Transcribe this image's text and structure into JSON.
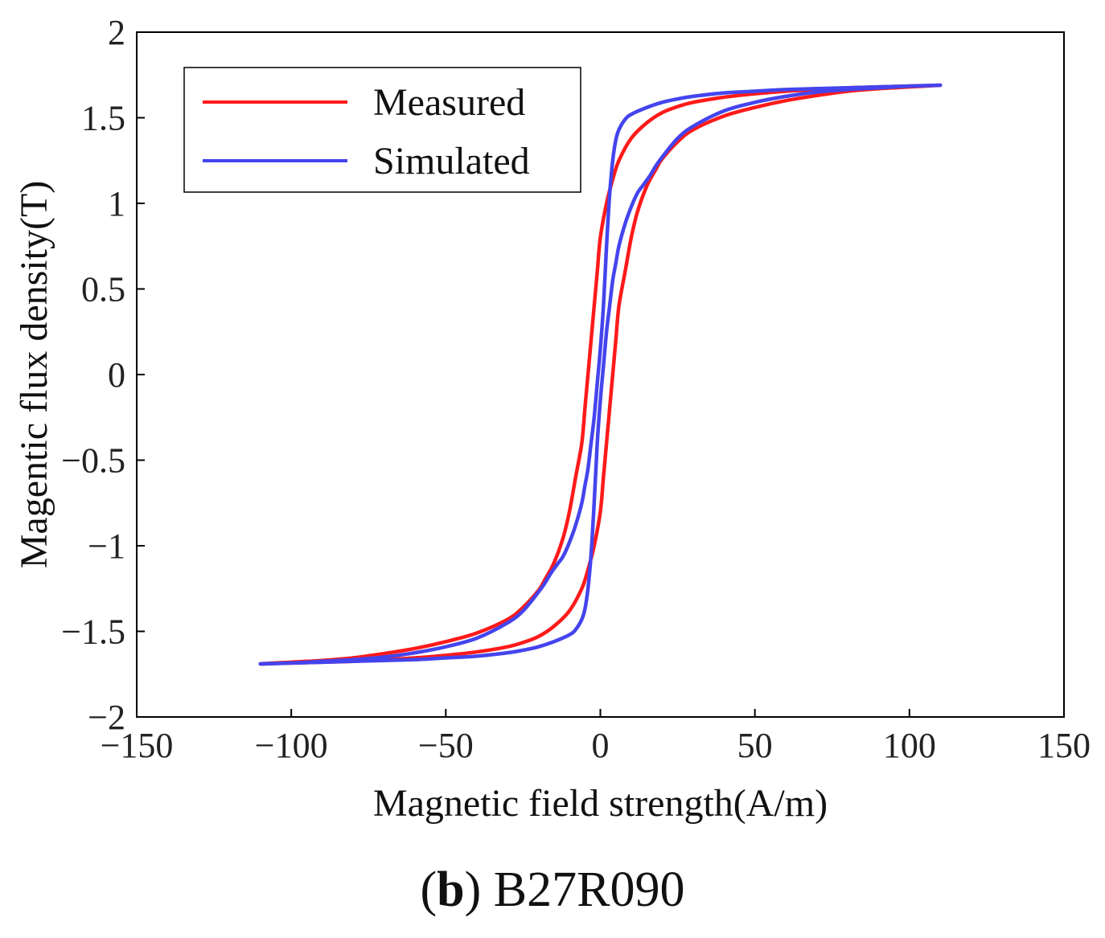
{
  "chart_data": {
    "type": "line",
    "title": "",
    "xlabel": "Magnetic field strength(A/m)",
    "ylabel": "Magentic flux density(T)",
    "xlim": [
      -150,
      150
    ],
    "ylim": [
      -2,
      2
    ],
    "xticks": [
      -150,
      -100,
      -50,
      0,
      50,
      100,
      150
    ],
    "yticks": [
      -2,
      -1.5,
      -1,
      -0.5,
      0,
      0.5,
      1,
      1.5,
      2
    ],
    "xtick_labels": [
      "−150",
      "−100",
      "−50",
      "0",
      "50",
      "100",
      "150"
    ],
    "ytick_labels": [
      "−2",
      "−1.5",
      "−1",
      "−0.5",
      "0",
      "0.5",
      "1",
      "1.5",
      "2"
    ],
    "grid": false,
    "legend_position": "top-left",
    "series": [
      {
        "name": "Measured",
        "color": "#ff1a1a",
        "x": [
          110,
          100,
          90,
          80,
          70,
          60,
          50,
          40,
          30,
          25,
          20,
          15,
          10,
          6,
          4,
          2,
          0,
          -1,
          -2,
          -3,
          -4,
          -5,
          -6,
          -8,
          -10,
          -12,
          -15,
          -18,
          -20,
          -25,
          -30,
          -40,
          -50,
          -60,
          -70,
          -80,
          -90,
          -100,
          -110,
          -100,
          -90,
          -80,
          -70,
          -60,
          -50,
          -40,
          -30,
          -25,
          -20,
          -15,
          -10,
          -6,
          -4,
          -2,
          0,
          1,
          2,
          3,
          4,
          5,
          6,
          8,
          10,
          12,
          15,
          18,
          20,
          25,
          30,
          40,
          50,
          60,
          70,
          80,
          90,
          100,
          110
        ],
        "y": [
          1.69,
          1.685,
          1.68,
          1.675,
          1.665,
          1.655,
          1.64,
          1.62,
          1.59,
          1.565,
          1.53,
          1.47,
          1.38,
          1.25,
          1.14,
          1.0,
          0.8,
          0.6,
          0.4,
          0.2,
          0.0,
          -0.2,
          -0.4,
          -0.6,
          -0.8,
          -0.95,
          -1.1,
          -1.2,
          -1.26,
          -1.36,
          -1.43,
          -1.51,
          -1.56,
          -1.6,
          -1.63,
          -1.655,
          -1.67,
          -1.68,
          -1.69,
          -1.685,
          -1.68,
          -1.675,
          -1.665,
          -1.655,
          -1.64,
          -1.62,
          -1.59,
          -1.565,
          -1.53,
          -1.47,
          -1.38,
          -1.25,
          -1.14,
          -1.0,
          -0.8,
          -0.6,
          -0.4,
          -0.2,
          0.0,
          0.2,
          0.4,
          0.6,
          0.8,
          0.95,
          1.1,
          1.2,
          1.26,
          1.36,
          1.43,
          1.51,
          1.56,
          1.6,
          1.63,
          1.655,
          1.67,
          1.68,
          1.69
        ]
      },
      {
        "name": "Simulated",
        "color": "#4444ee",
        "x": [
          110,
          100,
          90,
          80,
          70,
          60,
          50,
          40,
          30,
          25,
          20,
          15,
          10,
          8,
          6,
          5,
          4,
          3,
          2,
          1,
          0,
          -1,
          -2,
          -3,
          -4,
          -5,
          -6,
          -8,
          -10,
          -12,
          -14,
          -16,
          -18,
          -20,
          -25,
          -30,
          -40,
          -50,
          -60,
          -70,
          -80,
          -90,
          -100,
          -110,
          -100,
          -90,
          -80,
          -70,
          -60,
          -50,
          -40,
          -30,
          -25,
          -20,
          -15,
          -10,
          -8,
          -6,
          -5,
          -4,
          -3,
          -2,
          -1,
          0,
          1,
          2,
          3,
          4,
          5,
          6,
          8,
          10,
          12,
          14,
          16,
          18,
          20,
          25,
          30,
          40,
          50,
          60,
          70,
          80,
          90,
          100,
          110
        ],
        "y": [
          1.69,
          1.685,
          1.68,
          1.675,
          1.67,
          1.665,
          1.655,
          1.645,
          1.625,
          1.61,
          1.59,
          1.56,
          1.52,
          1.49,
          1.43,
          1.37,
          1.25,
          1.05,
          0.75,
          0.4,
          0.15,
          -0.05,
          -0.25,
          -0.4,
          -0.55,
          -0.65,
          -0.75,
          -0.88,
          -0.98,
          -1.06,
          -1.11,
          -1.16,
          -1.22,
          -1.27,
          -1.38,
          -1.45,
          -1.54,
          -1.59,
          -1.625,
          -1.65,
          -1.665,
          -1.675,
          -1.685,
          -1.69,
          -1.685,
          -1.68,
          -1.675,
          -1.67,
          -1.665,
          -1.655,
          -1.645,
          -1.625,
          -1.61,
          -1.59,
          -1.56,
          -1.52,
          -1.49,
          -1.43,
          -1.37,
          -1.25,
          -1.05,
          -0.75,
          -0.4,
          -0.15,
          0.05,
          0.25,
          0.4,
          0.55,
          0.65,
          0.75,
          0.88,
          0.98,
          1.06,
          1.11,
          1.16,
          1.22,
          1.27,
          1.38,
          1.45,
          1.54,
          1.59,
          1.625,
          1.65,
          1.665,
          1.675,
          1.685,
          1.69
        ]
      }
    ]
  },
  "caption": {
    "open_paren": "(",
    "letter": "b",
    "close_paren": ")",
    "text": "B27R090"
  }
}
